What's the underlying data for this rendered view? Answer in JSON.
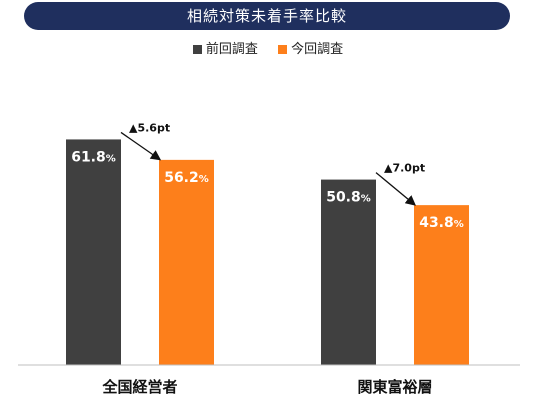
{
  "title": "相続対策未着手率比較",
  "colors": {
    "title_bg": "#1f2f5e",
    "previous": "#404040",
    "current": "#fd7f1b"
  },
  "legend": [
    {
      "label": "前回調査",
      "color": "#404040"
    },
    {
      "label": "今回調査",
      "color": "#fd7f1b"
    }
  ],
  "chart_data": {
    "type": "bar",
    "categories": [
      "全国経営者",
      "関東富裕層"
    ],
    "series": [
      {
        "name": "前回調査",
        "values": [
          61.8,
          50.8
        ],
        "labels": [
          "61.8",
          "50.8"
        ]
      },
      {
        "name": "今回調査",
        "values": [
          56.2,
          43.8
        ],
        "labels": [
          "56.2",
          "43.8"
        ]
      }
    ],
    "unit": "%",
    "changes": [
      "▲5.6pt",
      "▲7.0pt"
    ],
    "ylim": [
      0,
      100
    ],
    "grid": false
  }
}
